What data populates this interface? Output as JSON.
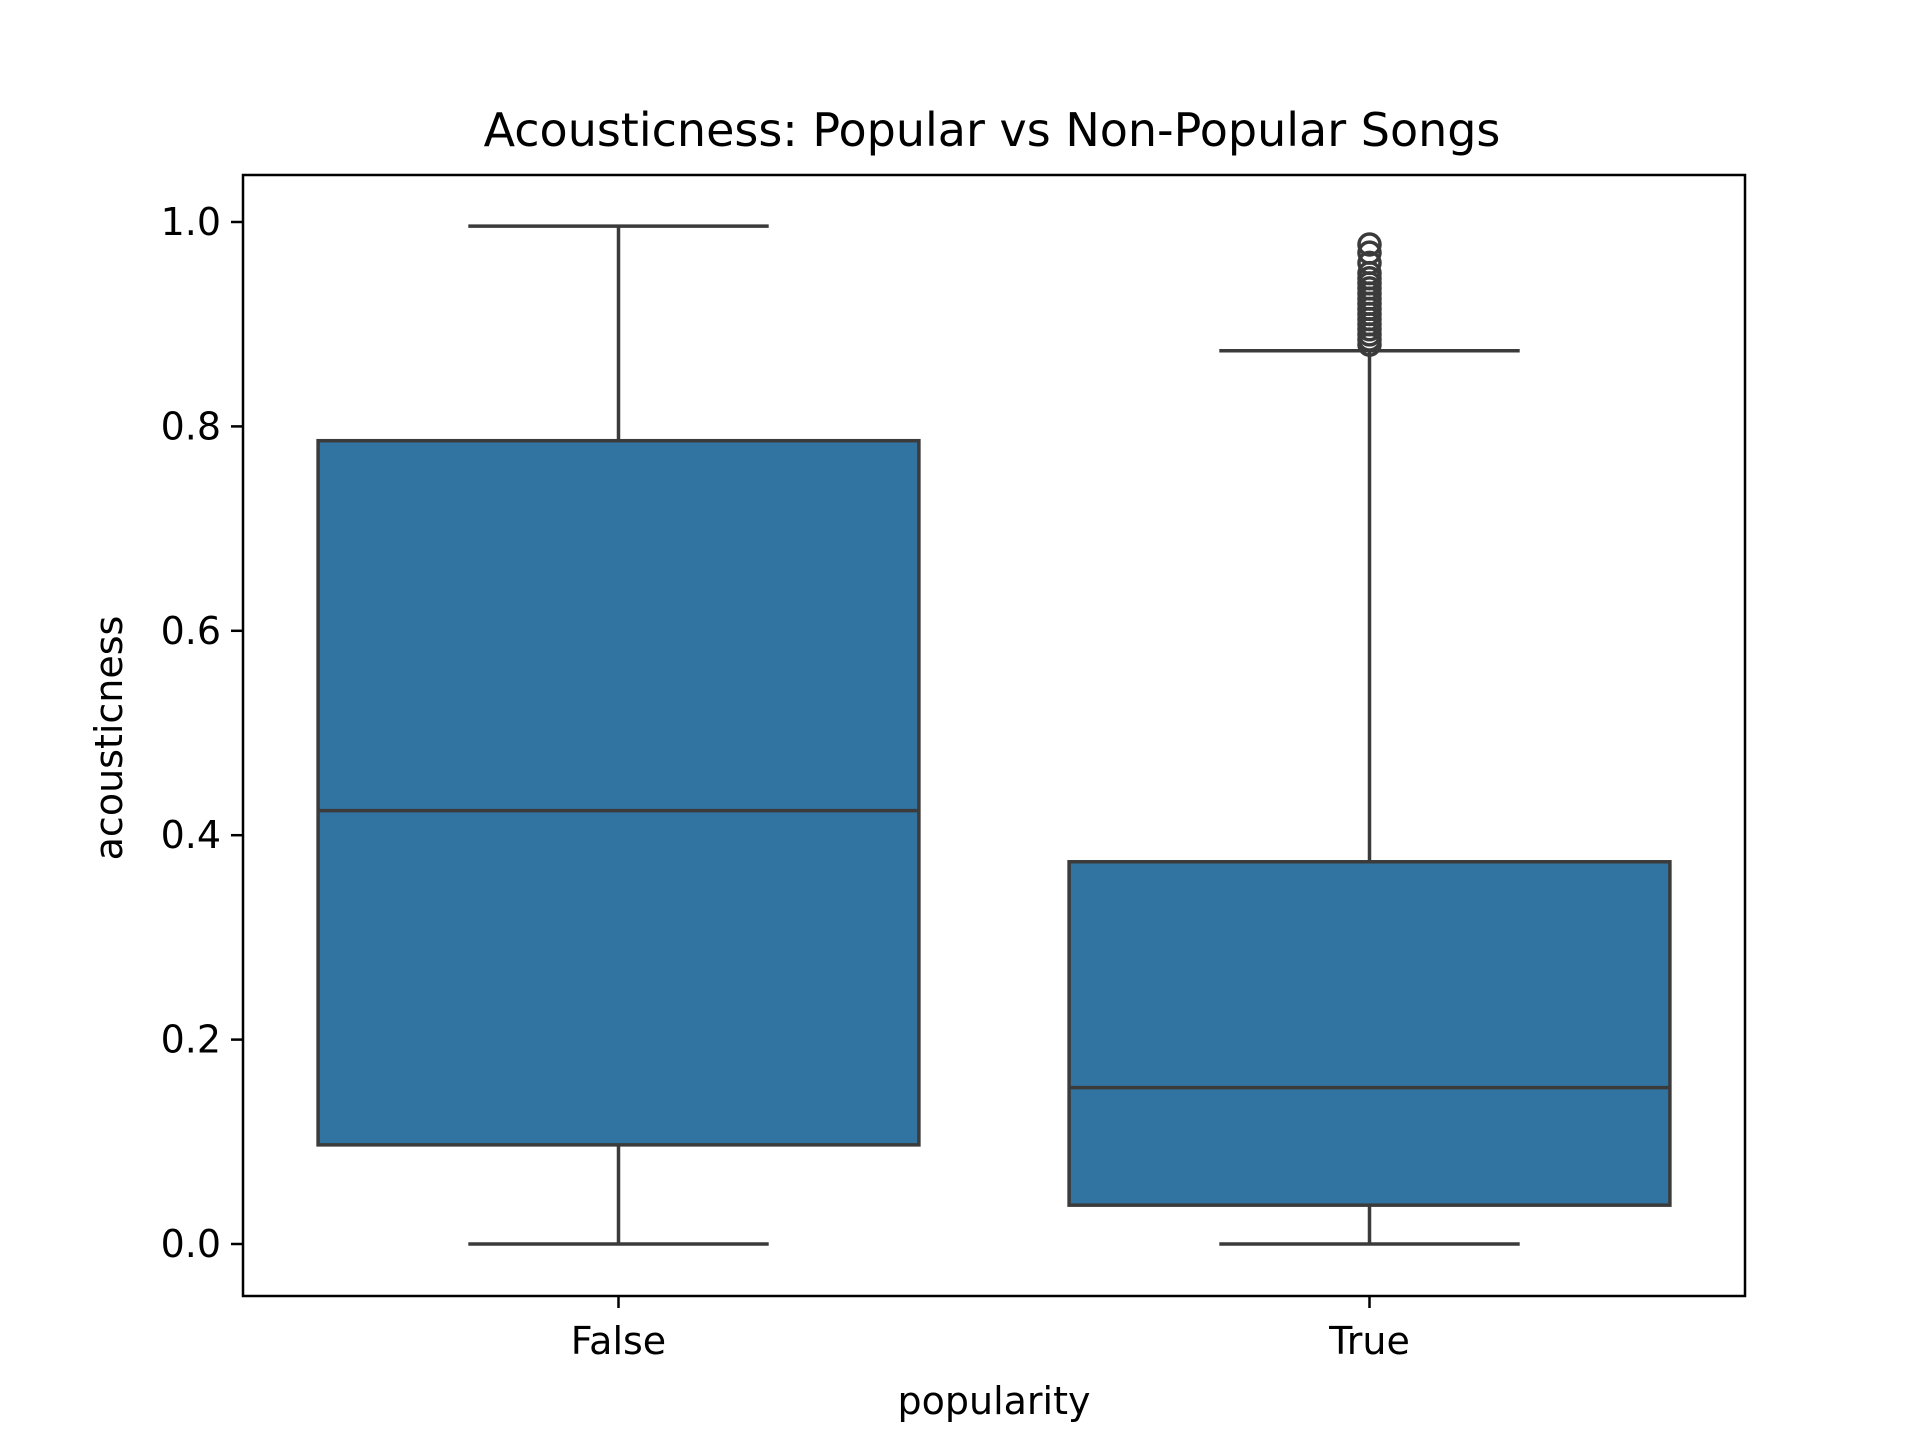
{
  "chart_data": {
    "type": "box",
    "title": "Acousticness: Popular vs Non-Popular Songs",
    "xlabel": "popularity",
    "ylabel": "acousticness",
    "categories": [
      "False",
      "True"
    ],
    "ylim": [
      -0.05,
      1.045
    ],
    "yticks": [
      0.0,
      0.2,
      0.4,
      0.6,
      0.8,
      1.0
    ],
    "ytick_labels": [
      "0.0",
      "0.2",
      "0.4",
      "0.6",
      "0.8",
      "1.0"
    ],
    "color": "#3274a1",
    "boxes": [
      {
        "category": "False",
        "whisker_low": 0.0,
        "q1": 0.097,
        "median": 0.424,
        "q3": 0.786,
        "whisker_high": 0.996,
        "outliers": []
      },
      {
        "category": "True",
        "whisker_low": 0.0,
        "q1": 0.038,
        "median": 0.153,
        "q3": 0.374,
        "whisker_high": 0.874,
        "outliers": [
          0.88,
          0.885,
          0.89,
          0.895,
          0.9,
          0.905,
          0.91,
          0.915,
          0.92,
          0.925,
          0.93,
          0.935,
          0.94,
          0.945,
          0.95,
          0.96,
          0.97,
          0.978
        ]
      }
    ]
  }
}
